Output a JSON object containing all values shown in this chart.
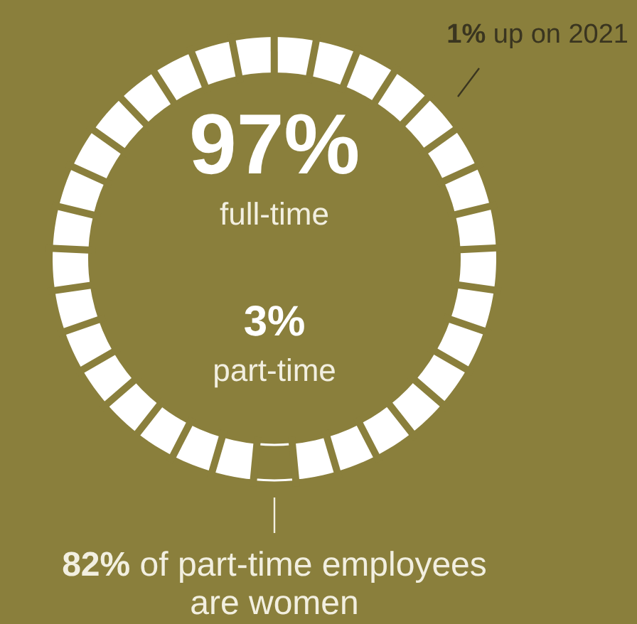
{
  "chart_data": {
    "type": "donut",
    "categories": [
      "full-time",
      "part-time"
    ],
    "values": [
      97,
      3
    ],
    "colors": [
      "#ffffff",
      "#ffffff"
    ],
    "value_labels": [
      "97%",
      "3%"
    ],
    "annotations": [
      "1% up on 2021",
      "82% of part-time employees are women"
    ]
  }
}
